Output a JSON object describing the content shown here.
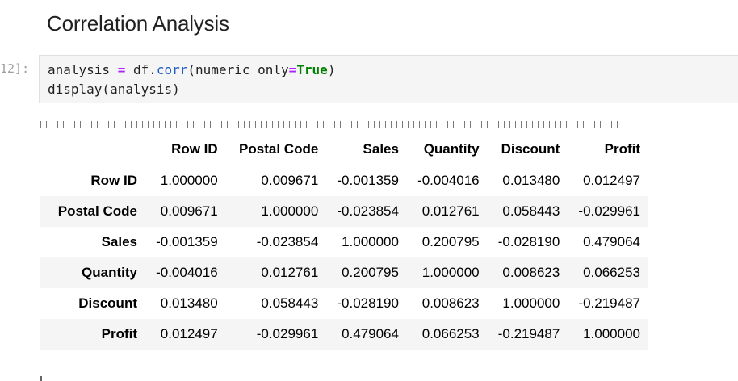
{
  "heading": "Correlation Analysis",
  "cell": {
    "prompt": "12]:",
    "code_line1": {
      "var": "analysis",
      "eq": " = ",
      "obj": "df.",
      "method": "corr",
      "open": "(numeric_only",
      "assign": "=",
      "kw": "True",
      "close": ")"
    },
    "code_line2": "display(analysis)"
  },
  "table": {
    "columns": [
      "Row ID",
      "Postal Code",
      "Sales",
      "Quantity",
      "Discount",
      "Profit"
    ],
    "rows": [
      {
        "label": "Row ID",
        "values": [
          "1.000000",
          "0.009671",
          "-0.001359",
          "-0.004016",
          "0.013480",
          "0.012497"
        ]
      },
      {
        "label": "Postal Code",
        "values": [
          "0.009671",
          "1.000000",
          "-0.023854",
          "0.012761",
          "0.058443",
          "-0.029961"
        ]
      },
      {
        "label": "Sales",
        "values": [
          "-0.001359",
          "-0.023854",
          "1.000000",
          "0.200795",
          "-0.028190",
          "0.479064"
        ]
      },
      {
        "label": "Quantity",
        "values": [
          "-0.004016",
          "0.012761",
          "0.200795",
          "1.000000",
          "0.008623",
          "0.066253"
        ]
      },
      {
        "label": "Discount",
        "values": [
          "0.013480",
          "0.058443",
          "-0.028190",
          "0.008623",
          "1.000000",
          "-0.219487"
        ]
      },
      {
        "label": "Profit",
        "values": [
          "0.012497",
          "-0.029961",
          "0.479064",
          "0.066253",
          "-0.219487",
          "1.000000"
        ]
      }
    ]
  }
}
